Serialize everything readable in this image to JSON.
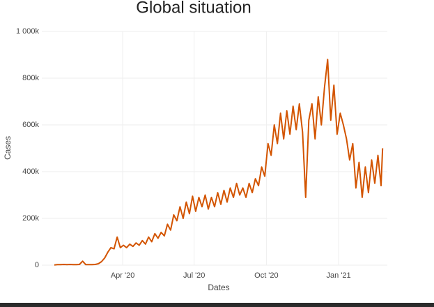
{
  "chart_data": {
    "type": "line",
    "title": "Global situation",
    "x_label": "Dates",
    "y_label": "Cases",
    "x": [
      4,
      8,
      12,
      16,
      20,
      24,
      28,
      32,
      36,
      40,
      44,
      48,
      52,
      56,
      60,
      64,
      68,
      72,
      76,
      80,
      84,
      88,
      92,
      96,
      100,
      104,
      108,
      112,
      116,
      120,
      124,
      128,
      132,
      136,
      140,
      144,
      148,
      152,
      156,
      160,
      164,
      168,
      172,
      176,
      180,
      184,
      188,
      192,
      196,
      200,
      204,
      208,
      212,
      216,
      220,
      224,
      228,
      232,
      236,
      240,
      244,
      248,
      252,
      256,
      260,
      264,
      268,
      272,
      276,
      280,
      284,
      288,
      292,
      296,
      300,
      304,
      308,
      312,
      316,
      320,
      324,
      328,
      332,
      336,
      340,
      344,
      348,
      352,
      356,
      360,
      364,
      368,
      372,
      376,
      380,
      384,
      388,
      392,
      396,
      400,
      404,
      408,
      412,
      416,
      420,
      422
    ],
    "series": [
      {
        "name": "Cases",
        "color": "#d35400",
        "values": [
          1000,
          2000,
          2000,
          3000,
          2000,
          3000,
          2000,
          2000,
          3000,
          17000,
          2000,
          2000,
          2000,
          3000,
          6000,
          15000,
          30000,
          55000,
          75000,
          70000,
          120000,
          75000,
          85000,
          75000,
          90000,
          80000,
          95000,
          85000,
          105000,
          90000,
          120000,
          100000,
          135000,
          115000,
          140000,
          125000,
          175000,
          150000,
          215000,
          190000,
          250000,
          200000,
          270000,
          220000,
          295000,
          230000,
          290000,
          250000,
          300000,
          240000,
          290000,
          250000,
          310000,
          260000,
          320000,
          270000,
          330000,
          290000,
          350000,
          300000,
          330000,
          290000,
          350000,
          310000,
          370000,
          340000,
          420000,
          380000,
          520000,
          470000,
          600000,
          520000,
          650000,
          540000,
          660000,
          560000,
          680000,
          580000,
          690000,
          570000,
          290000,
          620000,
          690000,
          540000,
          720000,
          600000,
          760000,
          880000,
          620000,
          770000,
          560000,
          650000,
          600000,
          540000,
          450000,
          520000,
          330000,
          440000,
          290000,
          420000,
          310000,
          450000,
          350000,
          470000,
          340000,
          500000
        ]
      }
    ],
    "xlim": [
      -12,
      428
    ],
    "xticks": [
      {
        "value": 91,
        "label": "Apr '20"
      },
      {
        "value": 182,
        "label": "Jul '20"
      },
      {
        "value": 274,
        "label": "Oct '20"
      },
      {
        "value": 366,
        "label": "Jan '21"
      }
    ],
    "ylim": [
      0,
      1000000
    ],
    "yticks": [
      {
        "value": 0,
        "label": "0"
      },
      {
        "value": 200000,
        "label": "200k"
      },
      {
        "value": 400000,
        "label": "400k"
      },
      {
        "value": 600000,
        "label": "600k"
      },
      {
        "value": 800000,
        "label": "800k"
      },
      {
        "value": 1000000,
        "label": "1 000k"
      }
    ],
    "grid": true
  }
}
